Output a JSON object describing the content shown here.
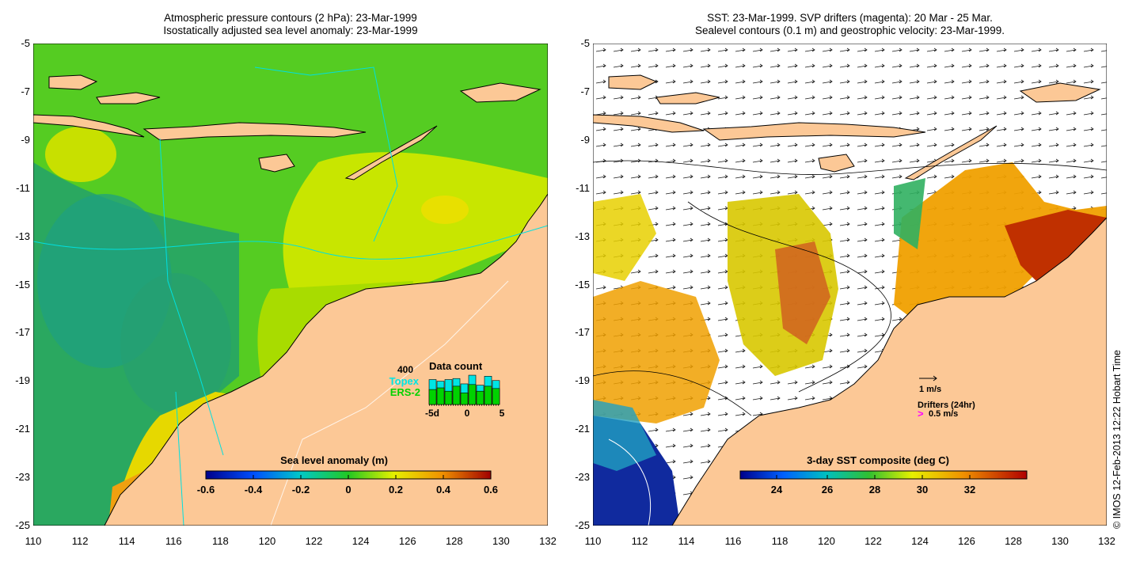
{
  "left_panel": {
    "title_line1": "Atmospheric pressure contours (2 hPa): 23-Mar-1999",
    "title_line2": "Isostatically adjusted sea level anomaly: 23-Mar-1999",
    "colorbar_label": "Sea level anomaly (m)",
    "colorbar_ticks": [
      "-0.6",
      "-0.4",
      "-0.2",
      "0",
      "0.2",
      "0.4",
      "0.6"
    ],
    "inset": {
      "ymax_label": "400",
      "title": "Data count",
      "legend_topex": "Topex",
      "legend_ers2": "ERS-2",
      "xticks": [
        "-5d",
        "0",
        "5"
      ],
      "bars_total": [
        0.75,
        0.7,
        0.75,
        0.78,
        0.62,
        0.88,
        0.58,
        0.85,
        0.72
      ],
      "bars_ers2": [
        0.45,
        0.5,
        0.4,
        0.55,
        0.35,
        0.6,
        0.4,
        0.55,
        0.48
      ]
    },
    "colors": {
      "topex": "#00e5e5",
      "ers2": "#00d200"
    }
  },
  "right_panel": {
    "title_line1": "SST: 23-Mar-1999. SVP drifters (magenta): 20 Mar - 25 Mar.",
    "title_line2": "Sealevel contours (0.1 m) and geostrophic velocity: 23-Mar-1999.",
    "colorbar_label": "3-day SST composite (deg C)",
    "colorbar_ticks": [
      "24",
      "26",
      "28",
      "30",
      "32"
    ],
    "scale_label": "1 m/s",
    "drifters_label": "Drifters (24hr)",
    "drifter_speed_label": "0.5 m/s",
    "drifter_color": "#ff00ff"
  },
  "axes": {
    "lat_ticks": [
      "-5",
      "-7",
      "-9",
      "-11",
      "-13",
      "-15",
      "-17",
      "-19",
      "-21",
      "-23",
      "-25"
    ],
    "lon_ticks": [
      "110",
      "112",
      "114",
      "116",
      "118",
      "120",
      "122",
      "124",
      "126",
      "128",
      "130",
      "132"
    ],
    "lat_range": [
      -25,
      -5
    ],
    "lon_range": [
      110,
      132
    ]
  },
  "credit": "© IMOS 12-Feb-2013 12:22 Hobart Time",
  "land_color": "#fcc896"
}
